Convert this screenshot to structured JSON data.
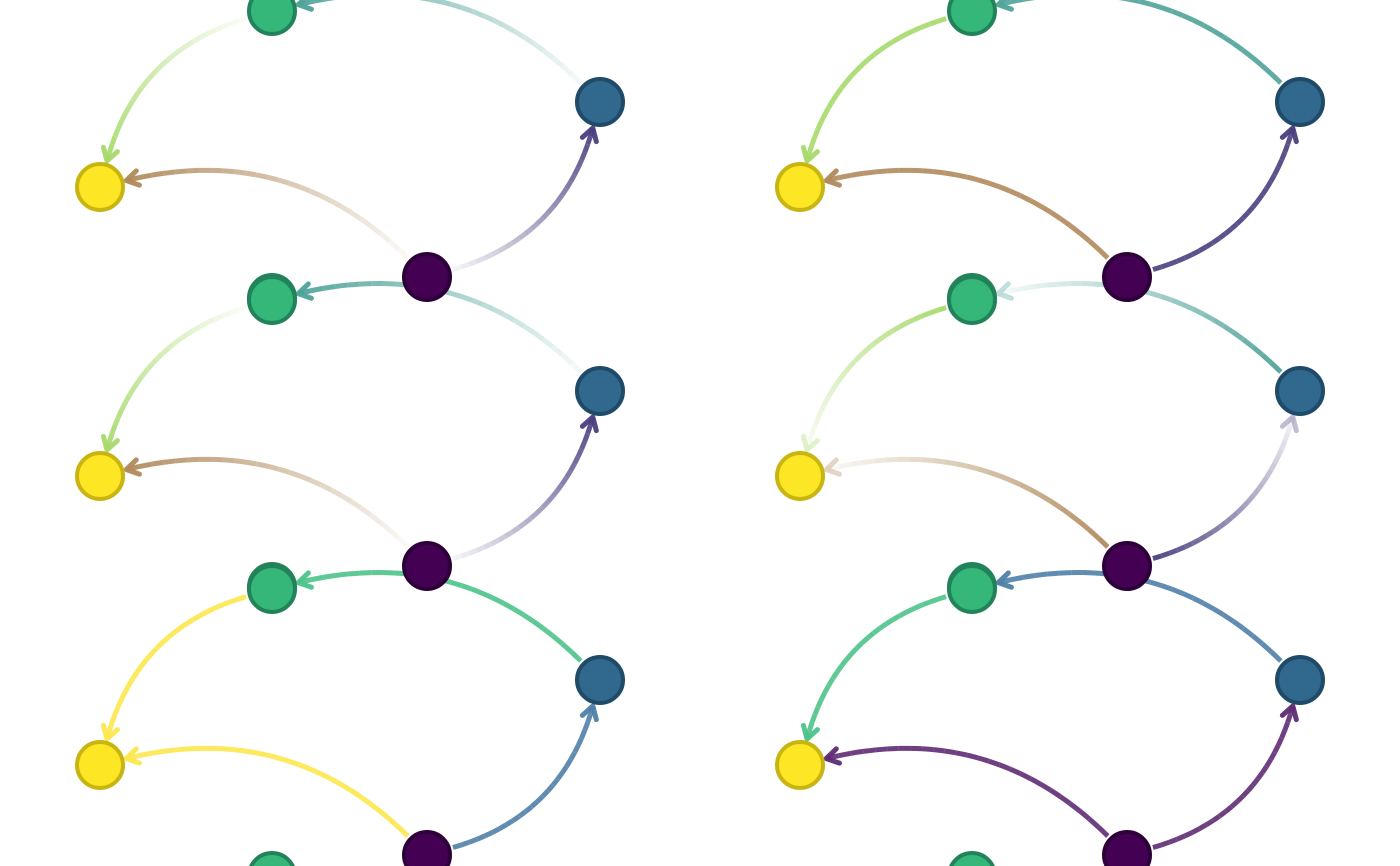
{
  "figure": {
    "description_type": "directed-graph-grid",
    "rows": 3,
    "columns": 2
  },
  "palette": {
    "purple": "#440154",
    "blue": "#31688E",
    "teal": "#35B779",
    "yellow": "#FDE725",
    "yellow_stroke": "#C9B512",
    "teal_stroke": "#22835A",
    "blue_stroke": "#1F4A68",
    "purple_stroke": "#2E003A",
    "edge_teal": "#4FA39A",
    "edge_lightgreen": "#A6D96A",
    "edge_tan": "#B08A5C",
    "edge_purple": "#4B3E7E",
    "edge_green": "#4CC38A",
    "edge_steel": "#4F7FA8",
    "edge_yellow": "#FDE74C",
    "edge_magenta": "#5E2B73"
  },
  "node_order": [
    "A",
    "B",
    "C",
    "D",
    "E"
  ],
  "node_colors": {
    "A": "teal",
    "B": "blue",
    "C": "yellow",
    "D": "purple",
    "E": "teal"
  },
  "edges": [
    {
      "from": "B",
      "to": "A"
    },
    {
      "from": "A",
      "to": "C"
    },
    {
      "from": "D",
      "to": "B"
    },
    {
      "from": "D",
      "to": "C"
    }
  ],
  "panels": [
    {
      "id": "r1c1",
      "row": 0,
      "col": 0,
      "fade": "to-start",
      "colors": [
        "edge_teal",
        "edge_lightgreen",
        "edge_purple",
        "edge_tan"
      ]
    },
    {
      "id": "r1c2",
      "row": 0,
      "col": 1,
      "fade": "none",
      "colors": [
        "edge_teal",
        "edge_lightgreen",
        "edge_purple",
        "edge_tan"
      ]
    },
    {
      "id": "r2c1",
      "row": 1,
      "col": 0,
      "fade": "to-start",
      "colors": [
        "edge_teal",
        "edge_lightgreen",
        "edge_purple",
        "edge_tan"
      ]
    },
    {
      "id": "r2c2",
      "row": 1,
      "col": 1,
      "fade": "to-end",
      "colors": [
        "edge_teal",
        "edge_lightgreen",
        "edge_purple",
        "edge_tan"
      ]
    },
    {
      "id": "r3c1",
      "row": 2,
      "col": 0,
      "fade": "none",
      "colors": [
        "edge_green",
        "edge_yellow",
        "edge_steel",
        "edge_yellow"
      ]
    },
    {
      "id": "r3c2",
      "row": 2,
      "col": 1,
      "fade": "none",
      "colors": [
        "edge_steel",
        "edge_green",
        "edge_magenta",
        "edge_magenta"
      ]
    }
  ]
}
